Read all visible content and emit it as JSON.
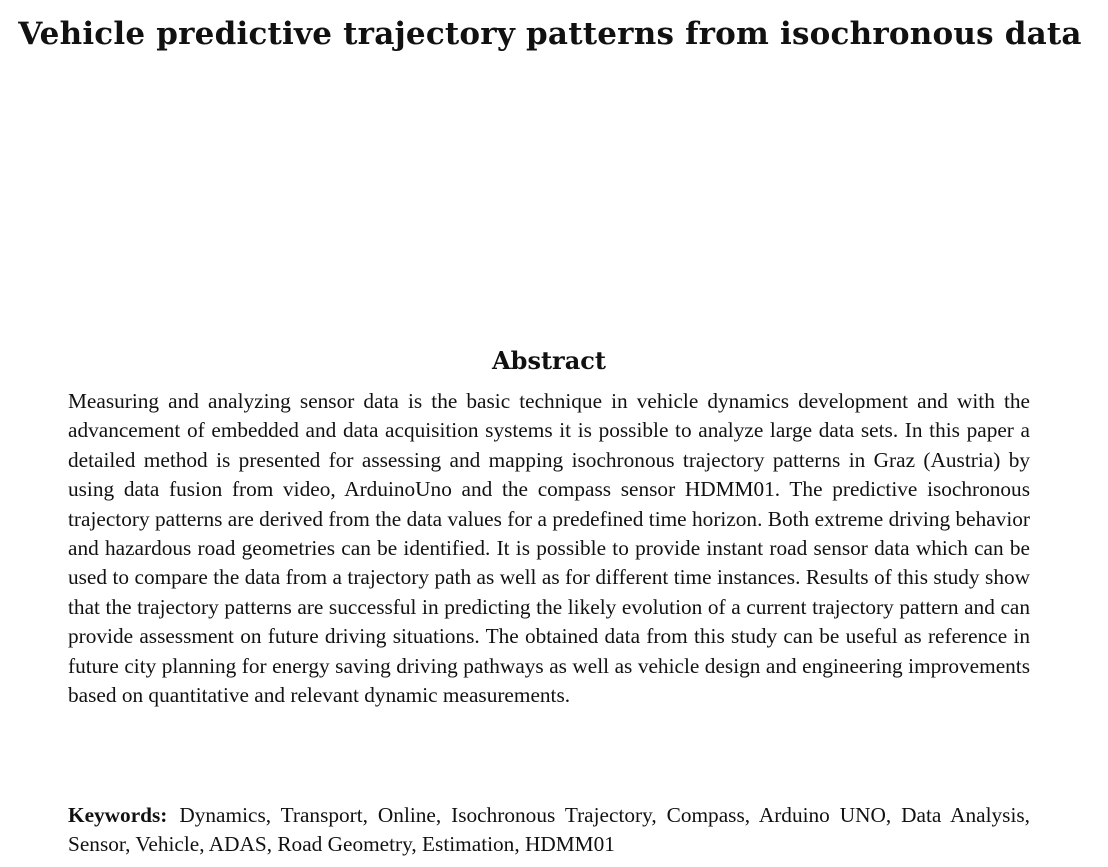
{
  "paper": {
    "title": "Vehicle predictive trajectory patterns from isochronous data",
    "abstract_heading": "Abstract",
    "abstract_text": "Measuring and analyzing sensor data is the basic technique in vehicle dynamics development and with the advancement of embedded and data acquisition systems it is possible to analyze large data sets.  In this paper a detailed method is presented for assessing and mapping isochronous trajectory patterns in Graz (Austria) by using data fusion from video, ArduinoUno and the compass sensor HDMM01.  The predictive isochronous trajectory patterns are derived from the data values for a predefined time horizon.  Both extreme driving behavior and hazardous road geometries can be identified. It is possible to provide instant road sensor data which can be used to compare the data from a trajectory path as well as for different time instances. Results of this study show that the trajectory patterns are successful in predicting the likely evolution of a current trajectory pattern and can provide assessment on future driving situations.  The obtained data from this study can be useful as reference in future city planning for energy saving driving pathways as well as vehicle design and engineering improvements based on quantitative and relevant dynamic measurements.",
    "keywords_label": "Keywords:",
    "keywords_text": "Dynamics, Transport, Online, Isochronous Trajectory, Compass, Arduino UNO, Data Analysis, Sensor, Vehicle, ADAS, Road Geometry, Estimation, HDMM01"
  }
}
